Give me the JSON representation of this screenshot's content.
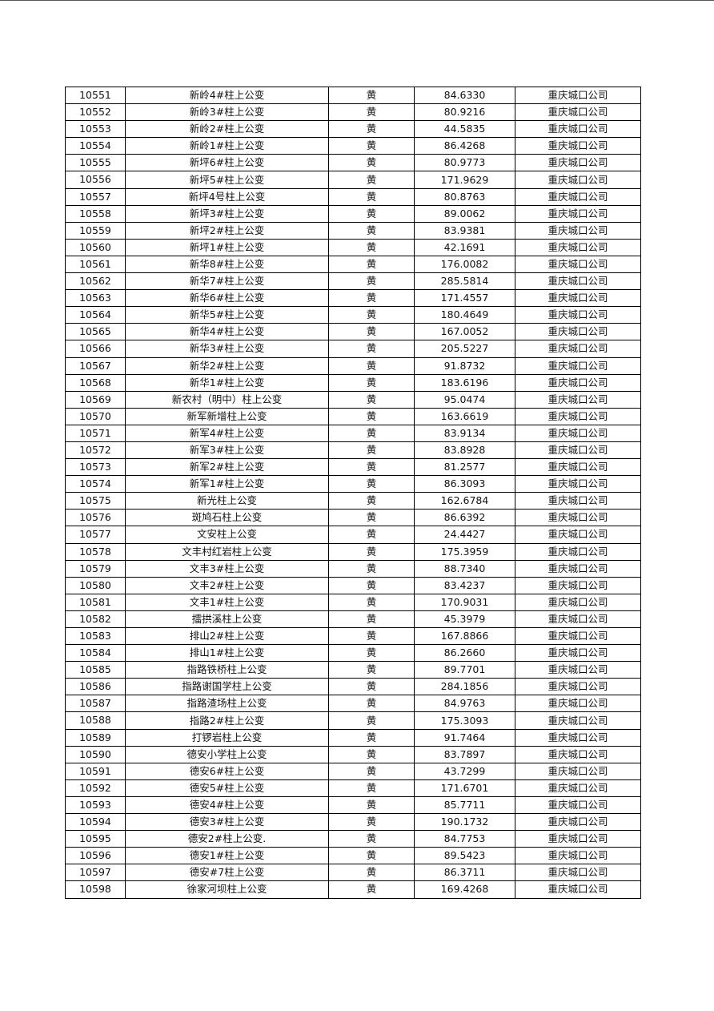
{
  "rows": [
    [
      "10551",
      "新岭4#柱上公变",
      "黄",
      "84.6330",
      "重庆城口公司"
    ],
    [
      "10552",
      "新岭3#柱上公变",
      "黄",
      "80.9216",
      "重庆城口公司"
    ],
    [
      "10553",
      "新岭2#柱上公变",
      "黄",
      "44.5835",
      "重庆城口公司"
    ],
    [
      "10554",
      "新岭1#柱上公变",
      "黄",
      "86.4268",
      "重庆城口公司"
    ],
    [
      "10555",
      "新坪6#柱上公变",
      "黄",
      "80.9773",
      "重庆城口公司"
    ],
    [
      "10556",
      "新坪5#柱上公变",
      "黄",
      "171.9629",
      "重庆城口公司"
    ],
    [
      "10557",
      "新坪4号柱上公变",
      "黄",
      "80.8763",
      "重庆城口公司"
    ],
    [
      "10558",
      "新坪3#柱上公变",
      "黄",
      "89.0062",
      "重庆城口公司"
    ],
    [
      "10559",
      "新坪2#柱上公变",
      "黄",
      "83.9381",
      "重庆城口公司"
    ],
    [
      "10560",
      "新坪1#柱上公变",
      "黄",
      "42.1691",
      "重庆城口公司"
    ],
    [
      "10561",
      "新华8#柱上公变",
      "黄",
      "176.0082",
      "重庆城口公司"
    ],
    [
      "10562",
      "新华7#柱上公变",
      "黄",
      "285.5814",
      "重庆城口公司"
    ],
    [
      "10563",
      "新华6#柱上公变",
      "黄",
      "171.4557",
      "重庆城口公司"
    ],
    [
      "10564",
      "新华5#柱上公变",
      "黄",
      "180.4649",
      "重庆城口公司"
    ],
    [
      "10565",
      "新华4#柱上公变",
      "黄",
      "167.0052",
      "重庆城口公司"
    ],
    [
      "10566",
      "新华3#柱上公变",
      "黄",
      "205.5227",
      "重庆城口公司"
    ],
    [
      "10567",
      "新华2#柱上公变",
      "黄",
      "91.8732",
      "重庆城口公司"
    ],
    [
      "10568",
      "新华1#柱上公变",
      "黄",
      "183.6196",
      "重庆城口公司"
    ],
    [
      "10569",
      "新农村（明中）柱上公变",
      "黄",
      "95.0474",
      "重庆城口公司"
    ],
    [
      "10570",
      "新军新增柱上公变",
      "黄",
      "163.6619",
      "重庆城口公司"
    ],
    [
      "10571",
      "新军4#柱上公变",
      "黄",
      "83.9134",
      "重庆城口公司"
    ],
    [
      "10572",
      "新军3#柱上公变",
      "黄",
      "83.8928",
      "重庆城口公司"
    ],
    [
      "10573",
      "新军2#柱上公变",
      "黄",
      "81.2577",
      "重庆城口公司"
    ],
    [
      "10574",
      "新军1#柱上公变",
      "黄",
      "86.3093",
      "重庆城口公司"
    ],
    [
      "10575",
      "新光柱上公变",
      "黄",
      "162.6784",
      "重庆城口公司"
    ],
    [
      "10576",
      "斑鸠石柱上公变",
      "黄",
      "86.6392",
      "重庆城口公司"
    ],
    [
      "10577",
      "文安柱上公变",
      "黄",
      "24.4427",
      "重庆城口公司"
    ],
    [
      "10578",
      "文丰村红岩柱上公变",
      "黄",
      "175.3959",
      "重庆城口公司"
    ],
    [
      "10579",
      "文丰3#柱上公变",
      "黄",
      "88.7340",
      "重庆城口公司"
    ],
    [
      "10580",
      "文丰2#柱上公变",
      "黄",
      "83.4237",
      "重庆城口公司"
    ],
    [
      "10581",
      "文丰1#柱上公变",
      "黄",
      "170.9031",
      "重庆城口公司"
    ],
    [
      "10582",
      "擂拱溪柱上公变",
      "黄",
      "45.3979",
      "重庆城口公司"
    ],
    [
      "10583",
      "排山2#柱上公变",
      "黄",
      "167.8866",
      "重庆城口公司"
    ],
    [
      "10584",
      "排山1#柱上公变",
      "黄",
      "86.2660",
      "重庆城口公司"
    ],
    [
      "10585",
      "指路铁桥柱上公变",
      "黄",
      "89.7701",
      "重庆城口公司"
    ],
    [
      "10586",
      "指路谢国学柱上公变",
      "黄",
      "284.1856",
      "重庆城口公司"
    ],
    [
      "10587",
      "指路渣场柱上公变",
      "黄",
      "84.9763",
      "重庆城口公司"
    ],
    [
      "10588",
      "指路2#柱上公变",
      "黄",
      "175.3093",
      "重庆城口公司"
    ],
    [
      "10589",
      "打锣岩柱上公变",
      "黄",
      "91.7464",
      "重庆城口公司"
    ],
    [
      "10590",
      "德安小学柱上公变",
      "黄",
      "83.7897",
      "重庆城口公司"
    ],
    [
      "10591",
      "德安6#柱上公变",
      "黄",
      "43.7299",
      "重庆城口公司"
    ],
    [
      "10592",
      "德安5#柱上公变",
      "黄",
      "171.6701",
      "重庆城口公司"
    ],
    [
      "10593",
      "德安4#柱上公变",
      "黄",
      "85.7711",
      "重庆城口公司"
    ],
    [
      "10594",
      "德安3#柱上公变",
      "黄",
      "190.1732",
      "重庆城口公司"
    ],
    [
      "10595",
      "德安2#柱上公变.",
      "黄",
      "84.7753",
      "重庆城口公司"
    ],
    [
      "10596",
      "德安1#柱上公变",
      "黄",
      "89.5423",
      "重庆城口公司"
    ],
    [
      "10597",
      "德安#7柱上公变",
      "黄",
      "86.3711",
      "重庆城口公司"
    ],
    [
      "10598",
      "徐家河坝柱上公变",
      "黄",
      "169.4268",
      "重庆城口公司"
    ]
  ]
}
